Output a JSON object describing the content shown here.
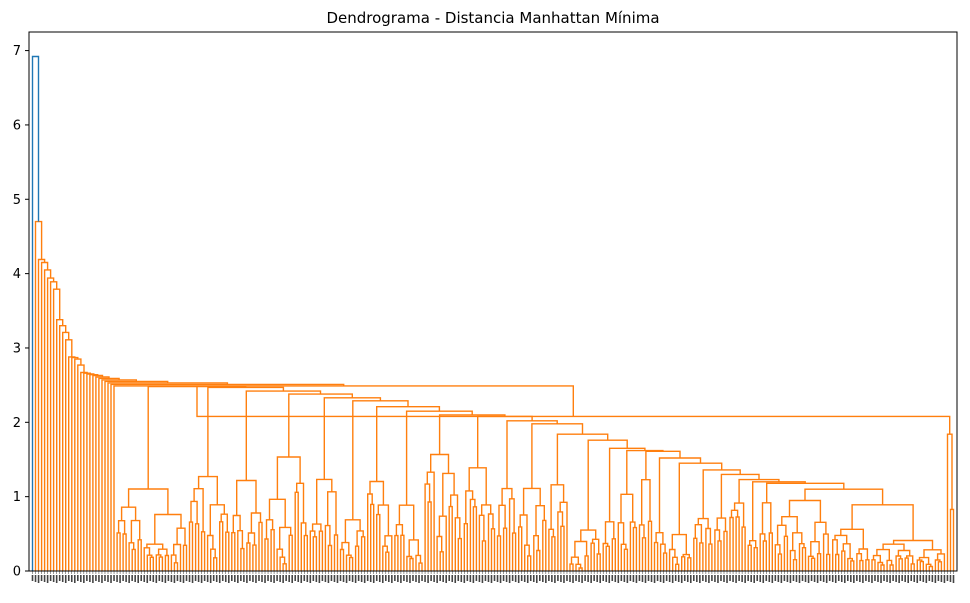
{
  "chart_data": {
    "type": "dendrogram",
    "title": "Dendrograma - Distancia Manhattan Mínima",
    "ylim": [
      0,
      7.25
    ],
    "yticks": [
      "0",
      "1",
      "2",
      "3",
      "4",
      "5",
      "6",
      "7"
    ],
    "colors": {
      "above_threshold": "#1f77b4",
      "cluster": "#ff7f0e",
      "axes": "#000000"
    },
    "leaf_count": 306,
    "root_height": 6.92,
    "root_left_child": {
      "x_fraction": 0.0013,
      "height": 0
    },
    "root_right_child": {
      "height": 4.7
    },
    "outlier_chain": [
      {
        "height": 4.7
      },
      {
        "height": 4.19
      },
      {
        "height": 4.15
      },
      {
        "height": 4.05
      },
      {
        "height": 3.94
      },
      {
        "height": 3.89
      },
      {
        "height": 3.79
      },
      {
        "height": 3.38
      },
      {
        "height": 3.3
      },
      {
        "height": 3.21
      },
      {
        "height": 3.11
      },
      {
        "height": 2.88
      },
      {
        "height": 2.87
      },
      {
        "height": 2.85
      },
      {
        "height": 2.77
      },
      {
        "height": 2.6
      },
      {
        "height": 2.56
      },
      {
        "height": 2.53
      },
      {
        "height": 2.48
      }
    ],
    "major_merges": [
      {
        "height": 2.48
      },
      {
        "height": 2.47
      },
      {
        "height": 2.42
      },
      {
        "height": 2.38
      },
      {
        "height": 2.33
      },
      {
        "height": 2.29
      },
      {
        "height": 2.21
      },
      {
        "height": 2.15
      },
      {
        "height": 2.1
      },
      {
        "height": 2.08
      },
      {
        "height": 2.02
      },
      {
        "height": 1.98
      },
      {
        "height": 1.84
      },
      {
        "height": 1.76
      },
      {
        "height": 1.65
      },
      {
        "height": 1.62
      },
      {
        "height": 1.61
      },
      {
        "height": 1.52
      },
      {
        "height": 1.45
      },
      {
        "height": 1.36
      },
      {
        "height": 1.3
      },
      {
        "height": 1.23
      },
      {
        "height": 1.2
      },
      {
        "height": 1.18
      }
    ]
  }
}
